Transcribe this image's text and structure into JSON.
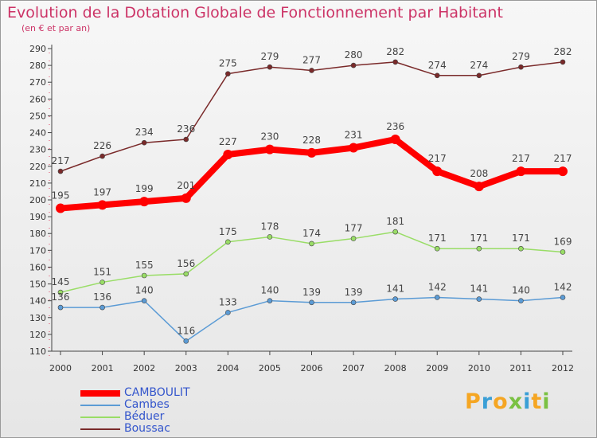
{
  "title": "Evolution de la Dotation Globale de Fonctionnement par Habitant",
  "subtitle": "(en € et par an)",
  "logo": {
    "text": "Proxiti",
    "colors": [
      "#f5a623",
      "#3a9fd6",
      "#f5a623",
      "#7ac143",
      "#3a9fd6",
      "#f5a623",
      "#7ac143"
    ]
  },
  "chart_data": {
    "type": "line",
    "title": "Evolution de la Dotation Globale de Fonctionnement par Habitant",
    "subtitle": "(en € et par an)",
    "xlabel": "",
    "ylabel": "",
    "x": [
      "2000",
      "2001",
      "2002",
      "2003",
      "2004",
      "2005",
      "2006",
      "2007",
      "2008",
      "2009",
      "2010",
      "2011",
      "2012"
    ],
    "ylim": [
      110,
      290
    ],
    "yticks": [
      110,
      120,
      130,
      140,
      150,
      160,
      170,
      180,
      190,
      200,
      210,
      220,
      230,
      240,
      250,
      260,
      270,
      280,
      290
    ],
    "grid": false,
    "legend_position": "bottom-left",
    "series": [
      {
        "name": "CAMBOULIT",
        "color": "#ff0000",
        "highlight": true,
        "values": [
          195,
          197,
          199,
          201,
          227,
          230,
          228,
          231,
          236,
          217,
          208,
          217,
          217
        ]
      },
      {
        "name": "Cambes",
        "color": "#5b9bd5",
        "highlight": false,
        "values": [
          136,
          136,
          140,
          116,
          133,
          140,
          139,
          139,
          141,
          142,
          141,
          140,
          142
        ]
      },
      {
        "name": "Béduer",
        "color": "#99dd66",
        "highlight": false,
        "values": [
          145,
          151,
          155,
          156,
          175,
          178,
          174,
          177,
          181,
          171,
          171,
          171,
          169
        ]
      },
      {
        "name": "Boussac",
        "color": "#7a2a2a",
        "highlight": false,
        "values": [
          217,
          226,
          234,
          236,
          275,
          279,
          277,
          280,
          282,
          274,
          274,
          279,
          282
        ]
      }
    ]
  }
}
